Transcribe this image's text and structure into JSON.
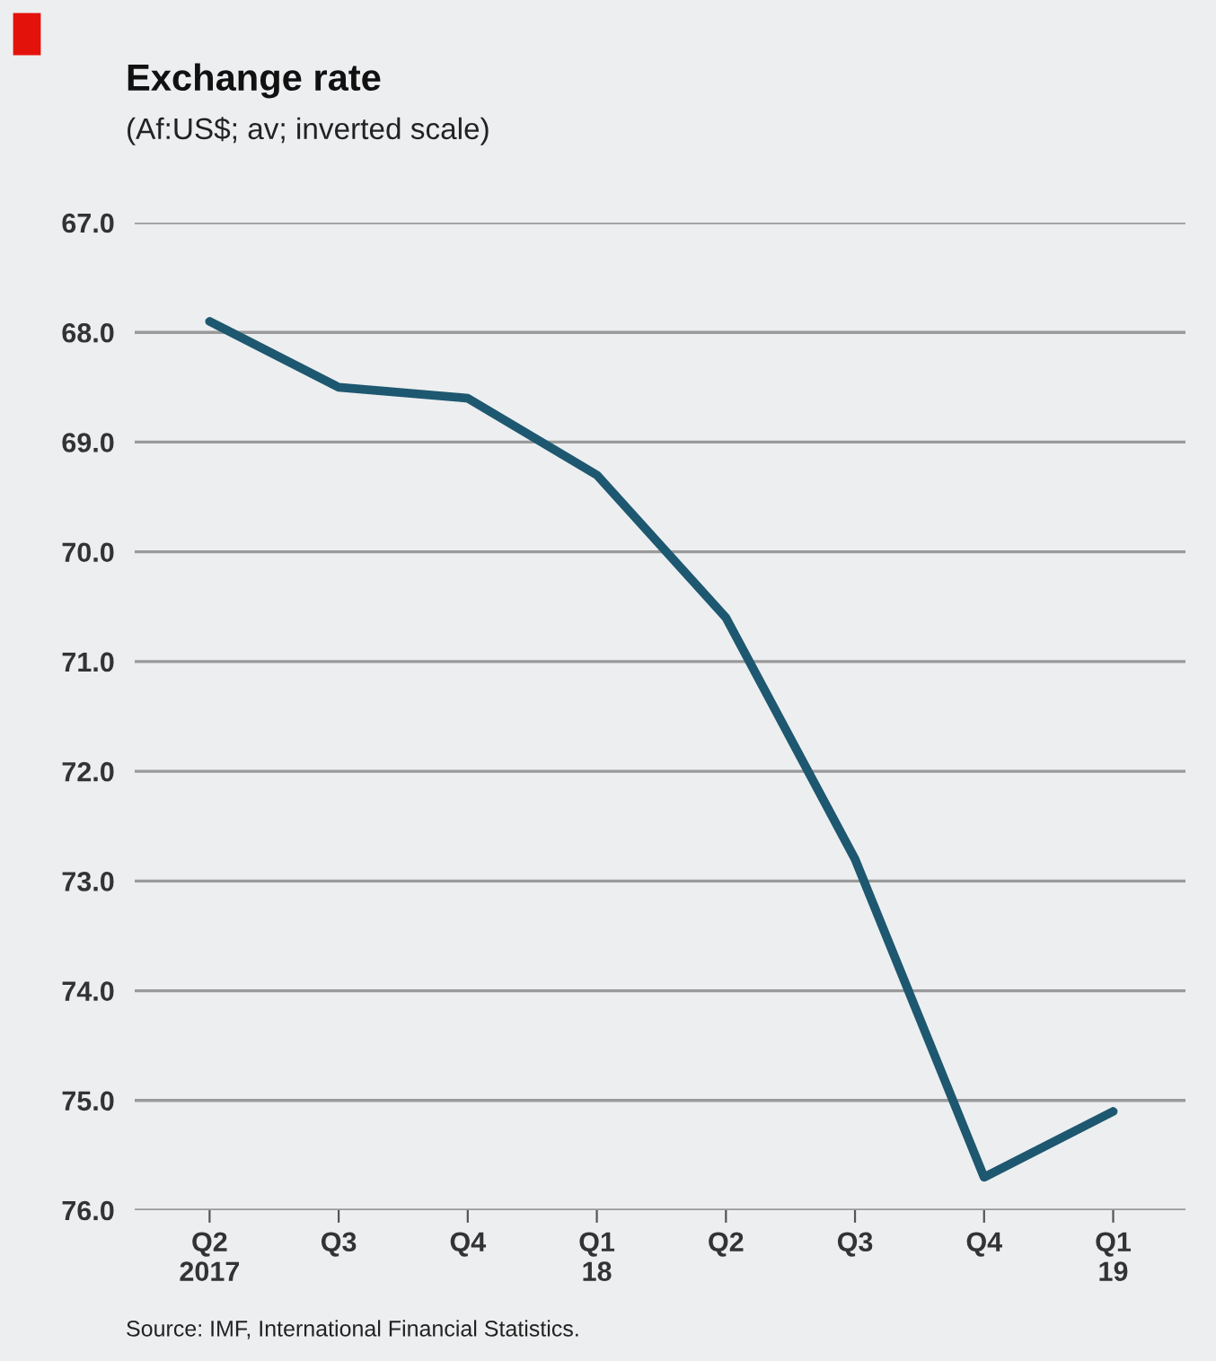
{
  "chart_data": {
    "type": "line",
    "title": "Exchange rate",
    "subtitle": "(Af:US$; av; inverted scale)",
    "categories": [
      "Q2\n2017",
      "Q3",
      "Q4",
      "Q1\n18",
      "Q2",
      "Q3",
      "Q4",
      "Q1\n19"
    ],
    "series": [
      {
        "color": "#1d5870",
        "values": [
          67.9,
          68.5,
          68.6,
          69.3,
          70.6,
          72.8,
          75.7,
          75.1
        ]
      }
    ],
    "ylim": [
      76.0,
      67.0
    ],
    "yticks": [
      {
        "value": 67,
        "label": "67.0"
      },
      {
        "value": 68,
        "label": "68.0"
      },
      {
        "value": 69,
        "label": "69.0"
      },
      {
        "value": 70,
        "label": "70.0"
      },
      {
        "value": 71,
        "label": "71.0"
      },
      {
        "value": 72,
        "label": "72.0"
      },
      {
        "value": 73,
        "label": "73.0"
      },
      {
        "value": 74,
        "label": "74.0"
      },
      {
        "value": 75,
        "label": "75.0"
      },
      {
        "value": 76,
        "label": "76.0"
      }
    ],
    "grid": "y",
    "legend": false,
    "marker": "none",
    "line_style": "solid",
    "annotations": [
      "Source: IMF, International Financial Statistics."
    ]
  }
}
